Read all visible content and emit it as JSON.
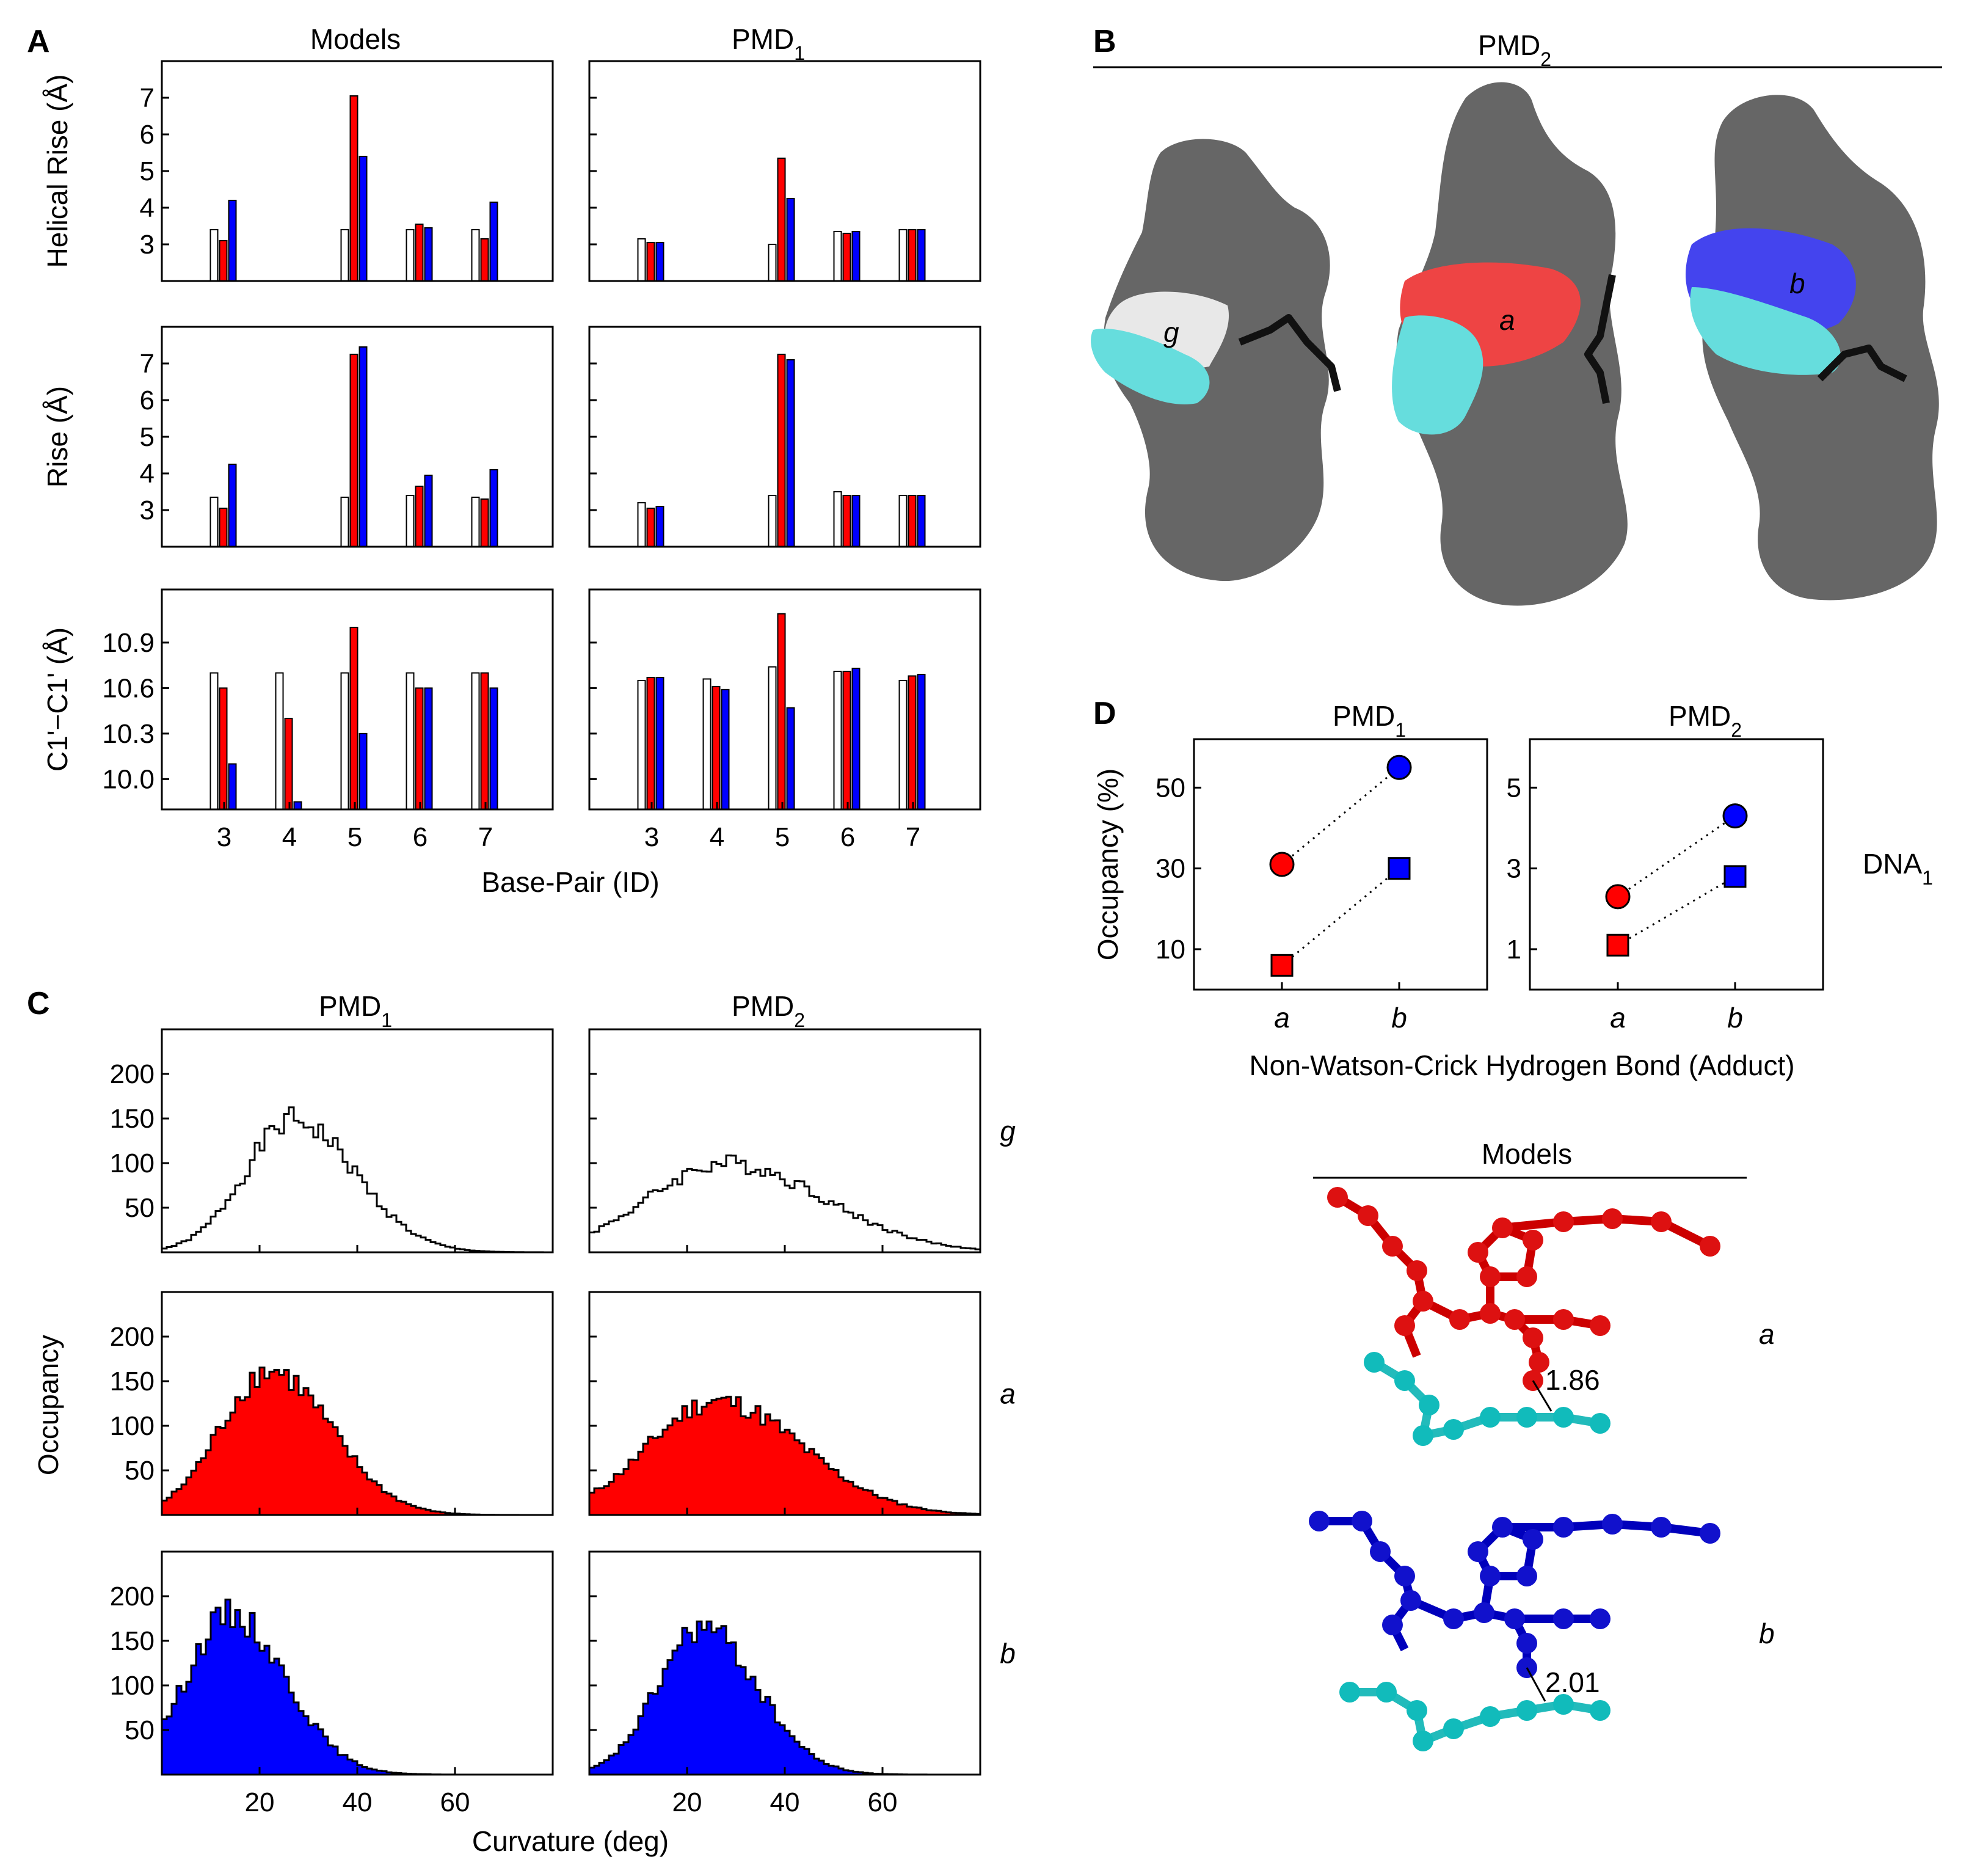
{
  "colors": {
    "g": "#ffffff",
    "a": "#ff0000",
    "b": "#0000ff",
    "cyan": "#00cccc",
    "gray": "#555555",
    "axis": "#000000"
  },
  "panels": {
    "A": "A",
    "B": "B",
    "C": "C",
    "D": "D"
  },
  "chart_data": [
    {
      "id": "A",
      "type": "bar",
      "titles": [
        "Models",
        "PMD1"
      ],
      "xlabel": "Base-Pair (ID)",
      "categories": [
        "3",
        "4",
        "5",
        "6",
        "7"
      ],
      "series_names": [
        "g",
        "a",
        "b"
      ],
      "rows": [
        {
          "ylabel": "Helical Rise (Å)",
          "ylim": [
            2,
            8
          ],
          "yticks": [
            {
              "v": 3,
              "t": "3"
            },
            {
              "v": 4,
              "t": "4"
            },
            {
              "v": 5,
              "t": "5"
            },
            {
              "v": 6,
              "t": "6"
            },
            {
              "v": 7,
              "t": "7"
            }
          ],
          "data": [
            [
              [
                3.4,
                3.1,
                4.2
              ],
              [
                3.4,
                7.05,
                5.4
              ],
              [
                3.4,
                3.55,
                3.45
              ],
              [
                3.4,
                3.15,
                4.15
              ]
            ],
            [
              [
                3.15,
                3.05,
                3.05
              ],
              [
                3.0,
                5.35,
                4.25
              ],
              [
                3.35,
                3.3,
                3.35
              ],
              [
                3.4,
                3.4,
                3.4
              ]
            ]
          ]
        },
        {
          "ylabel": "Rise (Å)",
          "ylim": [
            2,
            8
          ],
          "yticks": [
            {
              "v": 3,
              "t": "3"
            },
            {
              "v": 4,
              "t": "4"
            },
            {
              "v": 5,
              "t": "5"
            },
            {
              "v": 6,
              "t": "6"
            },
            {
              "v": 7,
              "t": "7"
            }
          ],
          "data": [
            [
              [
                3.35,
                3.05,
                4.25
              ],
              [
                3.35,
                7.25,
                7.45
              ],
              [
                3.4,
                3.65,
                3.95
              ],
              [
                3.35,
                3.3,
                4.1
              ]
            ],
            [
              [
                3.2,
                3.05,
                3.1
              ],
              [
                3.4,
                7.25,
                7.1
              ],
              [
                3.5,
                3.4,
                3.4
              ],
              [
                3.4,
                3.4,
                3.4
              ]
            ]
          ]
        },
        {
          "ylabel": "C1'−C1' (Å)",
          "ylim": [
            9.8,
            11.25
          ],
          "yticks": [
            {
              "v": 10.0,
              "t": "10.0"
            },
            {
              "v": 10.3,
              "t": "10.3"
            },
            {
              "v": 10.6,
              "t": "10.6"
            },
            {
              "v": 10.9,
              "t": "10.9"
            }
          ],
          "data": [
            [
              [
                10.7,
                10.6,
                10.1
              ],
              [
                10.7,
                10.4,
                9.85
              ],
              [
                10.7,
                11.0,
                10.3
              ],
              [
                10.7,
                10.6,
                10.6
              ],
              [
                10.7,
                10.7,
                10.6
              ]
            ],
            [
              [
                10.65,
                10.67,
                10.67
              ],
              [
                10.66,
                10.61,
                10.59
              ],
              [
                10.74,
                11.09,
                10.47
              ],
              [
                10.71,
                10.71,
                10.73
              ],
              [
                10.65,
                10.68,
                10.69
              ]
            ]
          ]
        }
      ]
    },
    {
      "id": "C",
      "type": "histogram",
      "titles": [
        "PMD1",
        "PMD2"
      ],
      "xlabel": "Curvature (deg)",
      "ylabel": "Occupancy",
      "xlim": [
        0,
        80
      ],
      "ylim": [
        0,
        250
      ],
      "xticks": [
        20,
        40,
        60
      ],
      "yticks": [
        50,
        100,
        150,
        200
      ],
      "rows": [
        {
          "label": "g",
          "fill": "none",
          "peaks": [
            [
              27,
              10,
              148
            ],
            [
              28,
              16,
              100
            ]
          ]
        },
        {
          "label": "a",
          "fill": "#ff0000",
          "peaks": [
            [
              22,
              10,
              162
            ],
            [
              26,
              14,
              128
            ]
          ]
        },
        {
          "label": "b",
          "fill": "#0000ff",
          "peaks": [
            [
              14,
              9,
              180
            ],
            [
              23,
              9,
              165
            ]
          ]
        }
      ]
    },
    {
      "id": "D",
      "type": "scatter",
      "xlabel": "Non-Watson-Crick Hydrogen Bond (Adduct)",
      "ylabel": "Occupancy (%)",
      "categories": [
        "a",
        "b"
      ],
      "side_label": "DNA1",
      "panels": [
        {
          "title": "PMD1",
          "ylim": [
            0,
            62
          ],
          "yticks": [
            10,
            30,
            50
          ],
          "circles": [
            31,
            55
          ],
          "squares": [
            6,
            30
          ]
        },
        {
          "title": "PMD2",
          "ylim": [
            0,
            6.2
          ],
          "yticks": [
            1,
            3,
            5
          ],
          "circles": [
            2.3,
            4.3
          ],
          "squares": [
            1.1,
            2.8
          ]
        }
      ]
    }
  ],
  "B": {
    "title": "PMD2",
    "labels": [
      "g",
      "a",
      "b"
    ]
  },
  "models": {
    "title": "Models",
    "rows": [
      {
        "label": "a",
        "distance": "1.86"
      },
      {
        "label": "b",
        "distance": "2.01"
      }
    ]
  }
}
